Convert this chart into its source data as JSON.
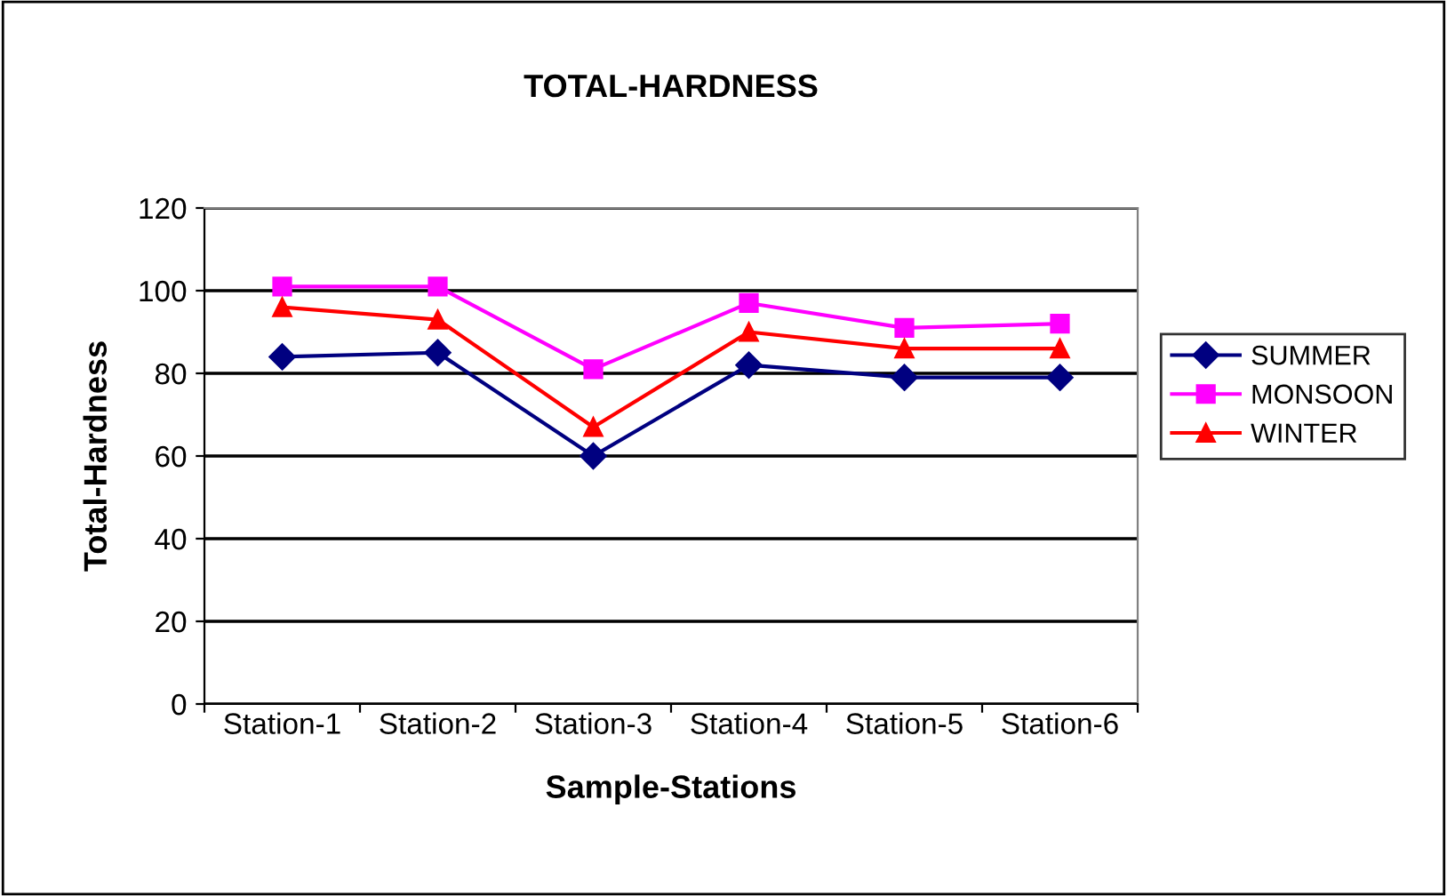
{
  "chart_data": {
    "type": "line",
    "title": "TOTAL-HARDNESS",
    "xlabel": "Sample-Stations",
    "ylabel": "Total-Hardness",
    "categories": [
      "Station-1",
      "Station-2",
      "Station-3",
      "Station-4",
      "Station-5",
      "Station-6"
    ],
    "series": [
      {
        "name": "SUMMER",
        "color": "#000080",
        "marker": "diamond",
        "values": [
          84,
          85,
          60,
          82,
          79,
          79
        ]
      },
      {
        "name": "MONSOON",
        "color": "#ff00ff",
        "marker": "square",
        "values": [
          101,
          101,
          81,
          97,
          91,
          92
        ]
      },
      {
        "name": "WINTER",
        "color": "#ff0000",
        "marker": "triangle",
        "values": [
          96,
          93,
          67,
          90,
          86,
          86
        ]
      }
    ],
    "ylim": [
      0,
      120
    ],
    "yticks": [
      0,
      20,
      40,
      60,
      80,
      100,
      120
    ],
    "grid": "y",
    "legend": "right"
  }
}
